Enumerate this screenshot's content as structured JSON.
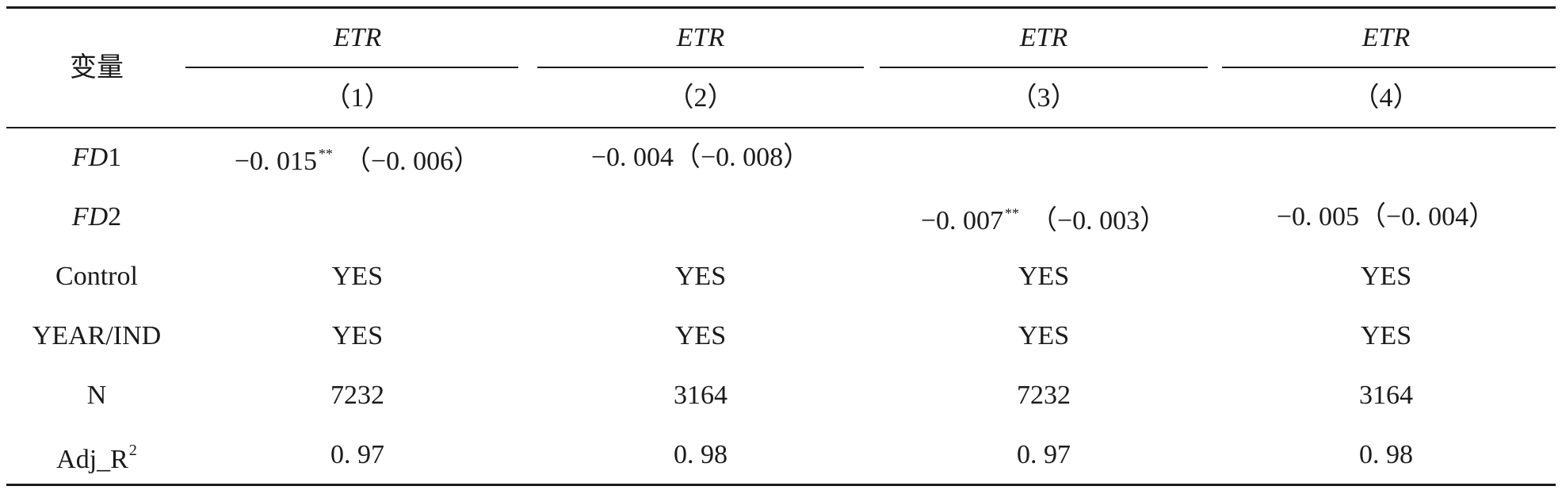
{
  "table": {
    "header": {
      "variable": "变量",
      "dependent": [
        "ETR",
        "ETR",
        "ETR",
        "ETR"
      ],
      "model_numbers": [
        "（1）",
        "（2）",
        "（3）",
        "（4）"
      ]
    },
    "rows": [
      {
        "label_prefix": "FD",
        "label_suffix": "1",
        "cells": [
          {
            "coef": "−0. 015",
            "stars": "**",
            "se": "（−0. 006）"
          },
          {
            "coef": "−0. 004",
            "stars": "",
            "se": "（−0. 008）"
          },
          {
            "coef": "",
            "stars": "",
            "se": ""
          },
          {
            "coef": "",
            "stars": "",
            "se": ""
          }
        ]
      },
      {
        "label_prefix": "FD",
        "label_suffix": "2",
        "cells": [
          {
            "coef": "",
            "stars": "",
            "se": ""
          },
          {
            "coef": "",
            "stars": "",
            "se": ""
          },
          {
            "coef": "−0. 007",
            "stars": "**",
            "se": "（−0. 003）"
          },
          {
            "coef": "−0. 005",
            "stars": "",
            "se": "（−0. 004）"
          }
        ]
      },
      {
        "label": "Control",
        "values": [
          "YES",
          "YES",
          "YES",
          "YES"
        ]
      },
      {
        "label": "YEAR/IND",
        "values": [
          "YES",
          "YES",
          "YES",
          "YES"
        ]
      },
      {
        "label": "N",
        "values": [
          "7232",
          "3164",
          "7232",
          "3164"
        ]
      },
      {
        "label": "Adj_R",
        "label_sup": "2",
        "values": [
          "0. 97",
          "0. 98",
          "0. 97",
          "0. 98"
        ]
      }
    ]
  }
}
